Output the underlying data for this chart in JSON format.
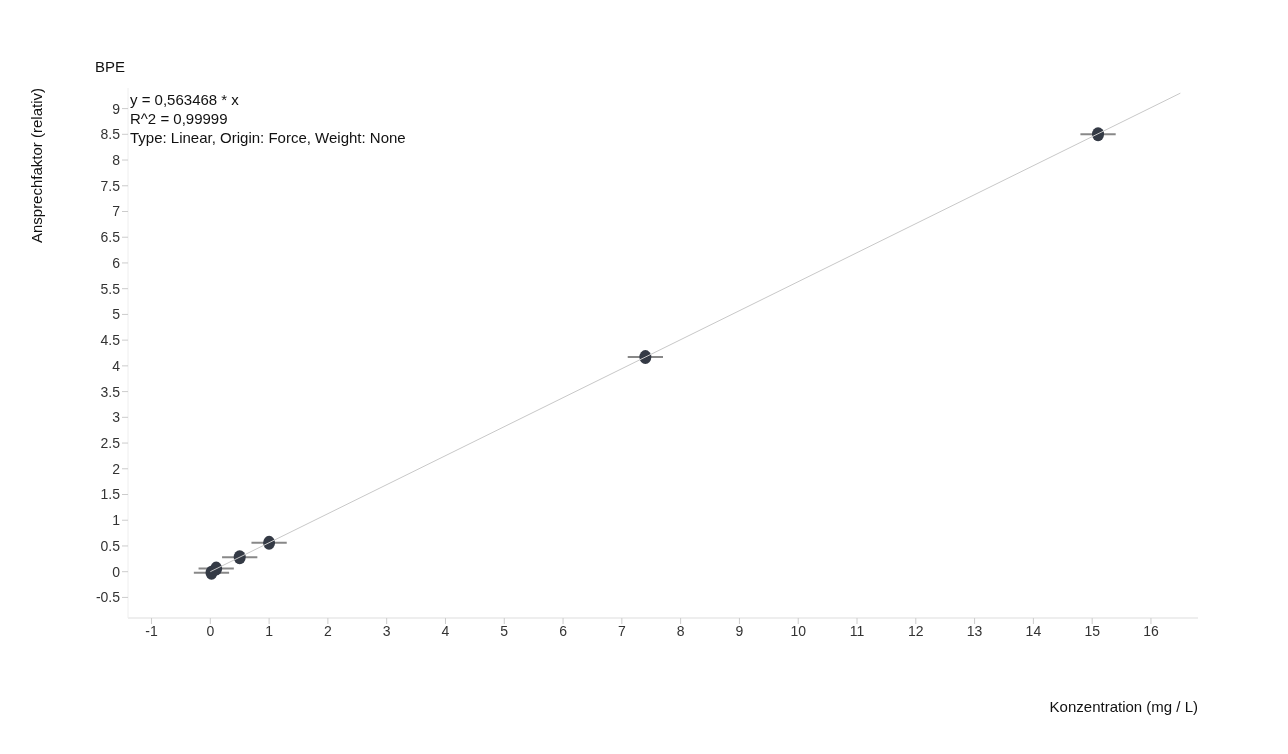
{
  "chart_data": {
    "type": "scatter",
    "title": "BPE",
    "xlabel": "Konzentration (mg / L)",
    "ylabel": "Ansprechfaktor (relativ)",
    "annotations": [
      "y = 0,563468 * x",
      "R^2 = 0,99999",
      "Type: Linear, Origin: Force, Weight: None"
    ],
    "series": [
      {
        "marker": "circle",
        "color": "#343a45",
        "x": [
          0.02,
          0.1,
          0.5,
          1.0,
          7.4,
          15.1
        ],
        "values": [
          -0.02,
          0.06,
          0.28,
          0.56,
          4.17,
          8.5
        ],
        "xerrors": [
          0.3,
          0.3,
          0.3,
          0.3,
          0.3,
          0.3
        ]
      },
      {
        "type": "line",
        "marker": "none",
        "color": "#c8c8c8",
        "x": [
          0,
          16.5
        ],
        "values": [
          0,
          9.3
        ]
      }
    ],
    "xlim": [
      -1.4,
      16.8
    ],
    "xticks": [
      -1,
      0,
      1,
      2,
      3,
      4,
      5,
      6,
      7,
      8,
      9,
      10,
      11,
      12,
      13,
      14,
      15,
      16
    ],
    "ylim": [
      -0.9,
      9.4
    ],
    "yticks": [
      -0.5,
      0,
      0.5,
      1,
      1.5,
      2,
      2.5,
      3,
      3.5,
      4,
      4.5,
      5,
      5.5,
      6,
      6.5,
      7,
      7.5,
      8,
      8.5,
      9
    ],
    "grid": false,
    "legend": false
  }
}
